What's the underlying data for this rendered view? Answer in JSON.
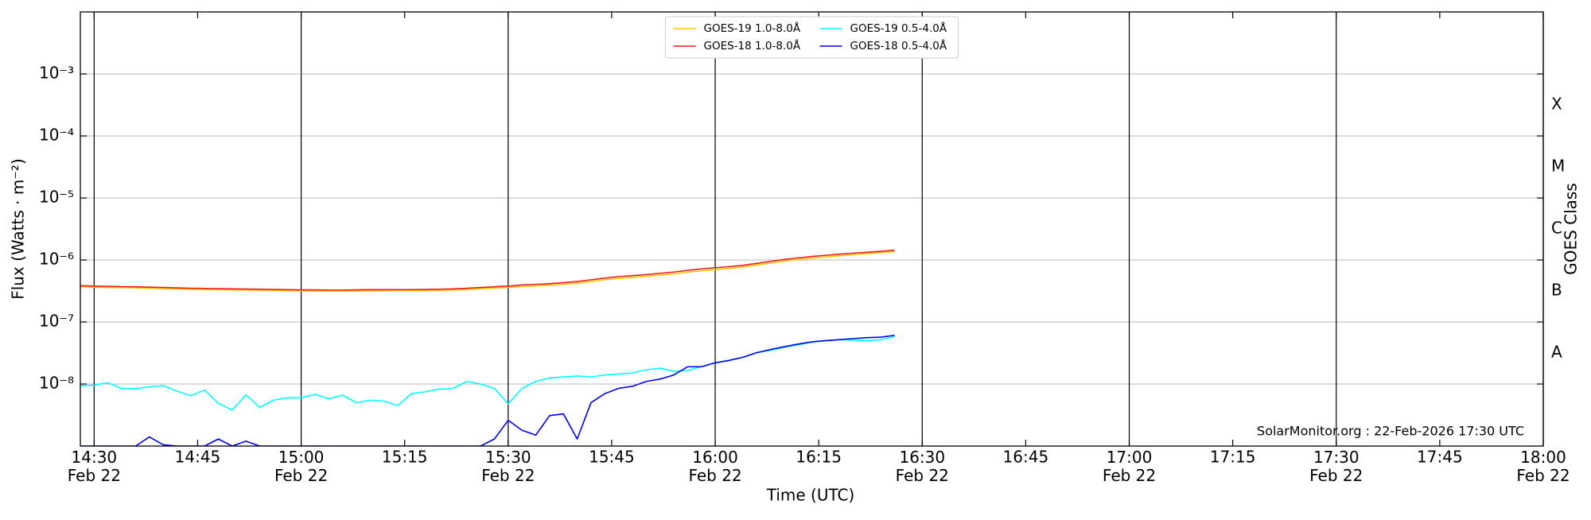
{
  "chart_data": {
    "type": "line",
    "xlabel": "Time (UTC)",
    "ylabel": "Flux (Watts · m⁻²)",
    "y2label": "GOES Class",
    "annotation": "SolarMonitor.org : 22-Feb-2026 17:30 UTC",
    "log_y": true,
    "grid": true,
    "legend": "upper center",
    "legend_columns": 2,
    "xlim": [
      "14:28",
      "18:00"
    ],
    "xticks": [
      {
        "value": "14:30",
        "label": "14:30\nFeb 22"
      },
      "14:45",
      {
        "value": "15:00",
        "label": "15:00\nFeb 22"
      },
      "15:15",
      {
        "value": "15:30",
        "label": "15:30\nFeb 22"
      },
      "15:45",
      {
        "value": "16:00",
        "label": "16:00\nFeb 22"
      },
      "16:15",
      {
        "value": "16:30",
        "label": "16:30\nFeb 22"
      },
      "16:45",
      {
        "value": "17:00",
        "label": "17:00\nFeb 22"
      },
      "17:15",
      {
        "value": "17:30",
        "label": "17:30\nFeb 22"
      },
      "17:45",
      {
        "value": "18:00",
        "label": "18:00\nFeb 22"
      }
    ],
    "ylim": [
      1e-09,
      0.01
    ],
    "yticks": [
      {
        "value": 1e-08,
        "label": "10⁻⁸"
      },
      {
        "value": 1e-07,
        "label": "10⁻⁷"
      },
      {
        "value": 1e-06,
        "label": "10⁻⁶"
      },
      {
        "value": 1e-05,
        "label": "10⁻⁵"
      },
      {
        "value": 0.0001,
        "label": "10⁻⁴"
      },
      {
        "value": 0.001,
        "label": "10⁻³"
      }
    ],
    "goes_classes": [
      {
        "label": "A",
        "range": [
          1e-08,
          1e-07
        ]
      },
      {
        "label": "B",
        "range": [
          1e-07,
          1e-06
        ]
      },
      {
        "label": "C",
        "range": [
          1e-06,
          1e-05
        ]
      },
      {
        "label": "M",
        "range": [
          1e-05,
          0.0001
        ]
      },
      {
        "label": "X",
        "range": [
          0.0001,
          0.001
        ]
      }
    ],
    "x": [
      "14:28",
      "14:30",
      "14:32",
      "14:34",
      "14:36",
      "14:38",
      "14:40",
      "14:42",
      "14:44",
      "14:46",
      "14:48",
      "14:50",
      "14:52",
      "14:54",
      "14:56",
      "14:58",
      "15:00",
      "15:02",
      "15:04",
      "15:06",
      "15:08",
      "15:10",
      "15:12",
      "15:14",
      "15:16",
      "15:18",
      "15:20",
      "15:22",
      "15:24",
      "15:26",
      "15:28",
      "15:30",
      "15:32",
      "15:34",
      "15:36",
      "15:38",
      "15:40",
      "15:42",
      "15:44",
      "15:46",
      "15:48",
      "15:50",
      "15:52",
      "15:54",
      "15:56",
      "15:58",
      "16:00",
      "16:02",
      "16:04",
      "16:06",
      "16:08",
      "16:10",
      "16:12",
      "16:14",
      "16:16",
      "16:18",
      "16:20",
      "16:22",
      "16:24",
      "16:26"
    ],
    "series": [
      {
        "name": "GOES-19 1.0-8.0Å",
        "color": "#ffc400",
        "values": [
          3.7e-07,
          3.65e-07,
          3.6e-07,
          3.58e-07,
          3.55e-07,
          3.5e-07,
          3.46e-07,
          3.42e-07,
          3.38e-07,
          3.35e-07,
          3.32e-07,
          3.3e-07,
          3.28e-07,
          3.26e-07,
          3.23e-07,
          3.2e-07,
          3.18e-07,
          3.17e-07,
          3.16e-07,
          3.16e-07,
          3.17e-07,
          3.18e-07,
          3.19e-07,
          3.2e-07,
          3.2e-07,
          3.22e-07,
          3.25e-07,
          3.28e-07,
          3.35e-07,
          3.44e-07,
          3.52e-07,
          3.6e-07,
          3.72e-07,
          3.82e-07,
          3.92e-07,
          4.05e-07,
          4.22e-07,
          4.5e-07,
          4.8e-07,
          5.05e-07,
          5.25e-07,
          5.45e-07,
          5.7e-07,
          6e-07,
          6.35e-07,
          6.7e-07,
          7e-07,
          7.3e-07,
          7.7e-07,
          8.3e-07,
          8.9e-07,
          9.6e-07,
          1.02e-06,
          1.07e-06,
          1.12e-06,
          1.17e-06,
          1.22e-06,
          1.26e-06,
          1.31e-06,
          1.37e-06
        ]
      },
      {
        "name": "GOES-18 1.0-8.0Å",
        "color": "#ee1c1c",
        "values": [
          3.85e-07,
          3.8e-07,
          3.75e-07,
          3.72e-07,
          3.7e-07,
          3.65e-07,
          3.6e-07,
          3.55e-07,
          3.5e-07,
          3.48e-07,
          3.45e-07,
          3.42e-07,
          3.4e-07,
          3.38e-07,
          3.35e-07,
          3.32e-07,
          3.3e-07,
          3.3e-07,
          3.28e-07,
          3.28e-07,
          3.3e-07,
          3.32e-07,
          3.32e-07,
          3.33e-07,
          3.33e-07,
          3.35e-07,
          3.38e-07,
          3.42e-07,
          3.5e-07,
          3.6e-07,
          3.7e-07,
          3.8e-07,
          3.95e-07,
          4.05e-07,
          4.15e-07,
          4.3e-07,
          4.5e-07,
          4.8e-07,
          5.1e-07,
          5.4e-07,
          5.6e-07,
          5.8e-07,
          6.1e-07,
          6.4e-07,
          6.8e-07,
          7.2e-07,
          7.5e-07,
          7.8e-07,
          8.2e-07,
          8.8e-07,
          9.5e-07,
          1.02e-06,
          1.08e-06,
          1.14e-06,
          1.19e-06,
          1.24e-06,
          1.29e-06,
          1.33e-06,
          1.38e-06,
          1.44e-06
        ]
      },
      {
        "name": "GOES-19 0.5-4.0Å",
        "color": "#00ffff",
        "values": [
          9.3e-09,
          9.6e-09,
          1.05e-08,
          8.5e-09,
          8.4e-09,
          9e-09,
          9.4e-09,
          7.7e-09,
          6.5e-09,
          8e-09,
          4.9e-09,
          3.8e-09,
          6.7e-09,
          4.2e-09,
          5.5e-09,
          6e-09,
          6e-09,
          6.8e-09,
          5.8e-09,
          6.6e-09,
          5e-09,
          5.5e-09,
          5.3e-09,
          4.5e-09,
          7e-09,
          7.5e-09,
          8.3e-09,
          8.5e-09,
          1.1e-08,
          1e-08,
          8.5e-09,
          4.8e-09,
          8.5e-09,
          1.1e-08,
          1.25e-08,
          1.3e-08,
          1.35e-08,
          1.3e-08,
          1.4e-08,
          1.45e-08,
          1.5e-08,
          1.7e-08,
          1.8e-08,
          1.6e-08,
          1.65e-08,
          1.9e-08,
          2.2e-08,
          2.4e-08,
          2.7e-08,
          3.2e-08,
          3.5e-08,
          3.9e-08,
          4.3e-08,
          4.7e-08,
          5e-08,
          5.2e-08,
          5.1e-08,
          5e-08,
          5.2e-08,
          5.8e-08
        ]
      },
      {
        "name": "GOES-18 0.5-4.0Å",
        "color": "#0000ee",
        "values": [
          1e-09,
          1e-09,
          1e-09,
          1e-09,
          1e-09,
          1.4e-09,
          1.05e-09,
          1e-09,
          1e-09,
          1e-09,
          1.3e-09,
          1e-09,
          1.2e-09,
          1e-09,
          1e-09,
          1e-09,
          1e-09,
          1e-09,
          1e-09,
          1e-09,
          1e-09,
          1e-09,
          1e-09,
          1e-09,
          1e-09,
          1e-09,
          1e-09,
          1e-09,
          1e-09,
          1e-09,
          1.3e-09,
          2.6e-09,
          1.8e-09,
          1.5e-09,
          3.1e-09,
          3.3e-09,
          1.3e-09,
          5e-09,
          7e-09,
          8.5e-09,
          9.2e-09,
          1.1e-08,
          1.2e-08,
          1.4e-08,
          1.9e-08,
          1.9e-08,
          2.2e-08,
          2.4e-08,
          2.7e-08,
          3.2e-08,
          3.6e-08,
          4e-08,
          4.4e-08,
          4.8e-08,
          5e-08,
          5.2e-08,
          5.4e-08,
          5.6e-08,
          5.7e-08,
          6.1e-08
        ]
      }
    ]
  }
}
